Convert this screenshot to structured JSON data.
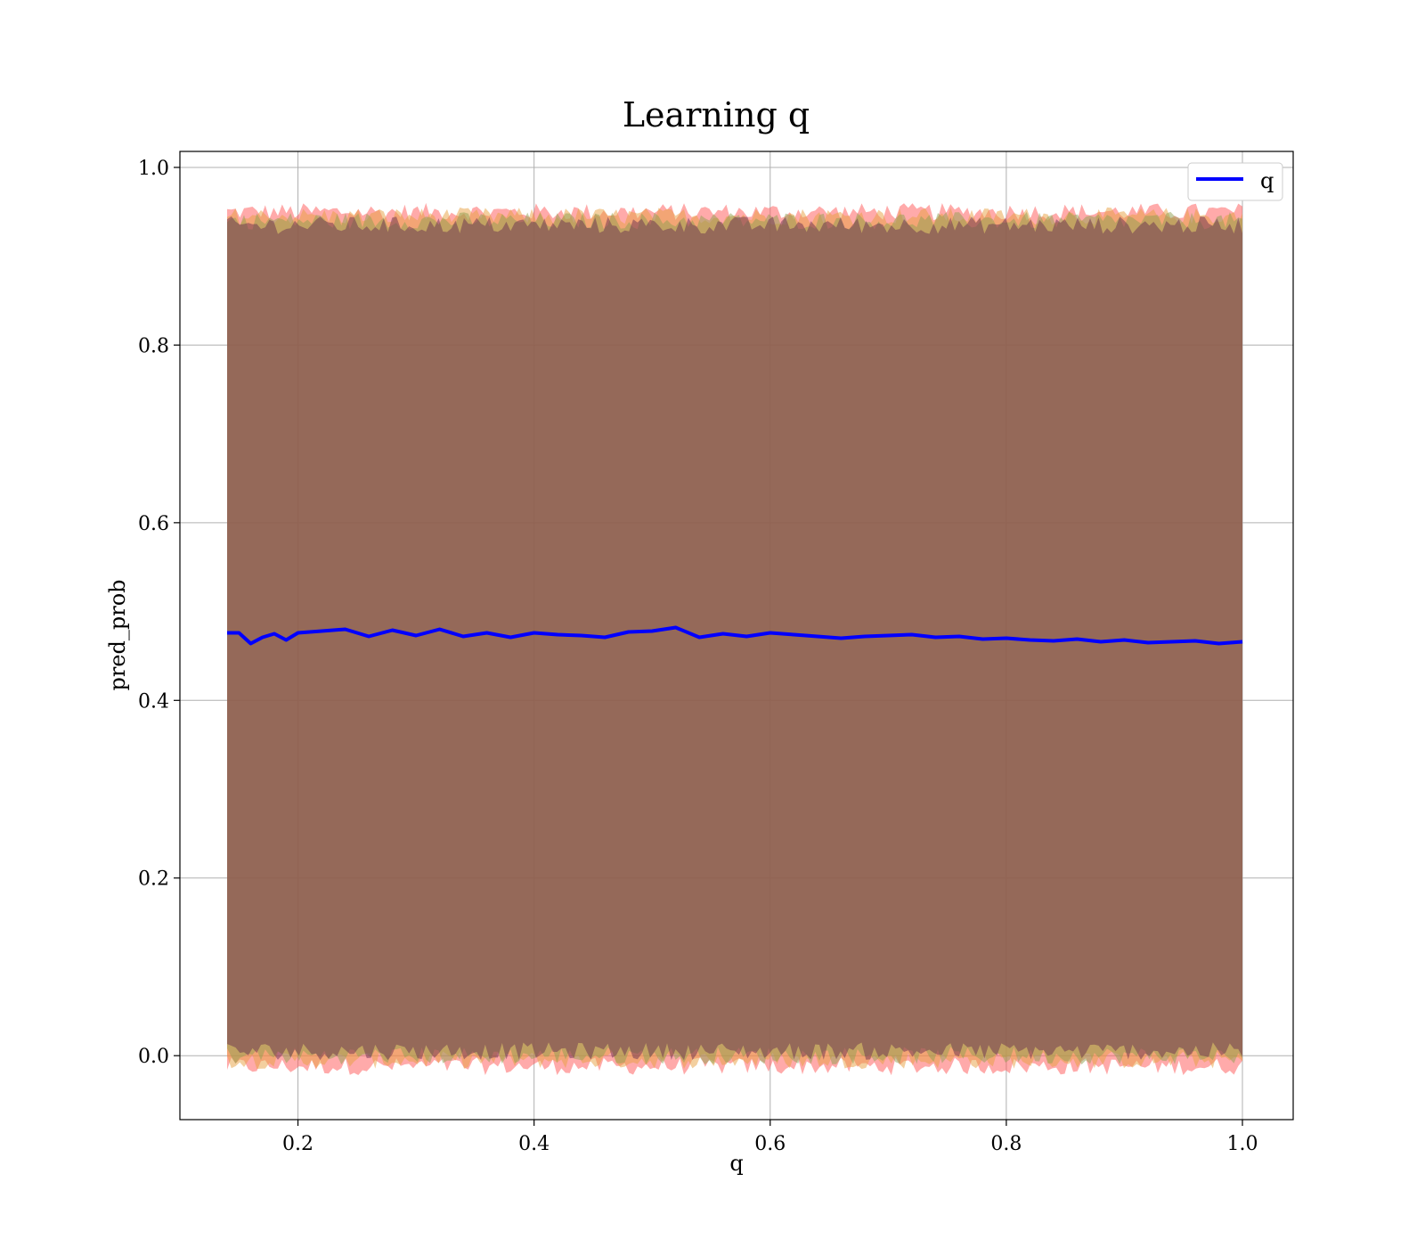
{
  "chart_data": {
    "type": "line",
    "title": "Learning q",
    "xlabel": "q",
    "ylabel": "pred_prob",
    "xlim": [
      0.1,
      1.043
    ],
    "ylim": [
      -0.072,
      1.018
    ],
    "x_ticks": [
      "0.2",
      "0.4",
      "0.6",
      "0.8",
      "1.0"
    ],
    "y_ticks": [
      "0.0",
      "0.2",
      "0.4",
      "0.6",
      "0.8",
      "1.0"
    ],
    "grid": true,
    "legend_position": "top-right",
    "series": [
      {
        "name": "q",
        "color": "#0000ff",
        "x": [
          0.14,
          0.15,
          0.16,
          0.17,
          0.18,
          0.19,
          0.2,
          0.22,
          0.24,
          0.26,
          0.28,
          0.3,
          0.32,
          0.34,
          0.36,
          0.38,
          0.4,
          0.42,
          0.44,
          0.46,
          0.48,
          0.5,
          0.52,
          0.54,
          0.56,
          0.58,
          0.6,
          0.62,
          0.64,
          0.66,
          0.68,
          0.7,
          0.72,
          0.74,
          0.76,
          0.78,
          0.8,
          0.82,
          0.84,
          0.86,
          0.88,
          0.9,
          0.92,
          0.94,
          0.96,
          0.98,
          1.0
        ],
        "y": [
          0.476,
          0.476,
          0.464,
          0.471,
          0.475,
          0.468,
          0.476,
          0.478,
          0.48,
          0.472,
          0.479,
          0.473,
          0.48,
          0.472,
          0.476,
          0.471,
          0.476,
          0.474,
          0.473,
          0.471,
          0.477,
          0.478,
          0.482,
          0.471,
          0.475,
          0.472,
          0.476,
          0.474,
          0.472,
          0.47,
          0.472,
          0.473,
          0.474,
          0.471,
          0.472,
          0.469,
          0.47,
          0.468,
          0.467,
          0.469,
          0.466,
          0.468,
          0.465,
          0.466,
          0.467,
          0.464,
          0.466
        ]
      }
    ],
    "bands": [
      {
        "color": "#ff5555",
        "opacity": 0.5,
        "lower": -0.012,
        "upper": 0.95
      },
      {
        "color": "#e8a040",
        "opacity": 0.5,
        "lower": -0.005,
        "upper": 0.945
      },
      {
        "color": "#90a050",
        "opacity": 0.5,
        "lower": 0.0,
        "upper": 0.94
      },
      {
        "color": "#6a3050",
        "opacity": 0.5,
        "lower": 0.005,
        "upper": 0.935
      }
    ]
  }
}
